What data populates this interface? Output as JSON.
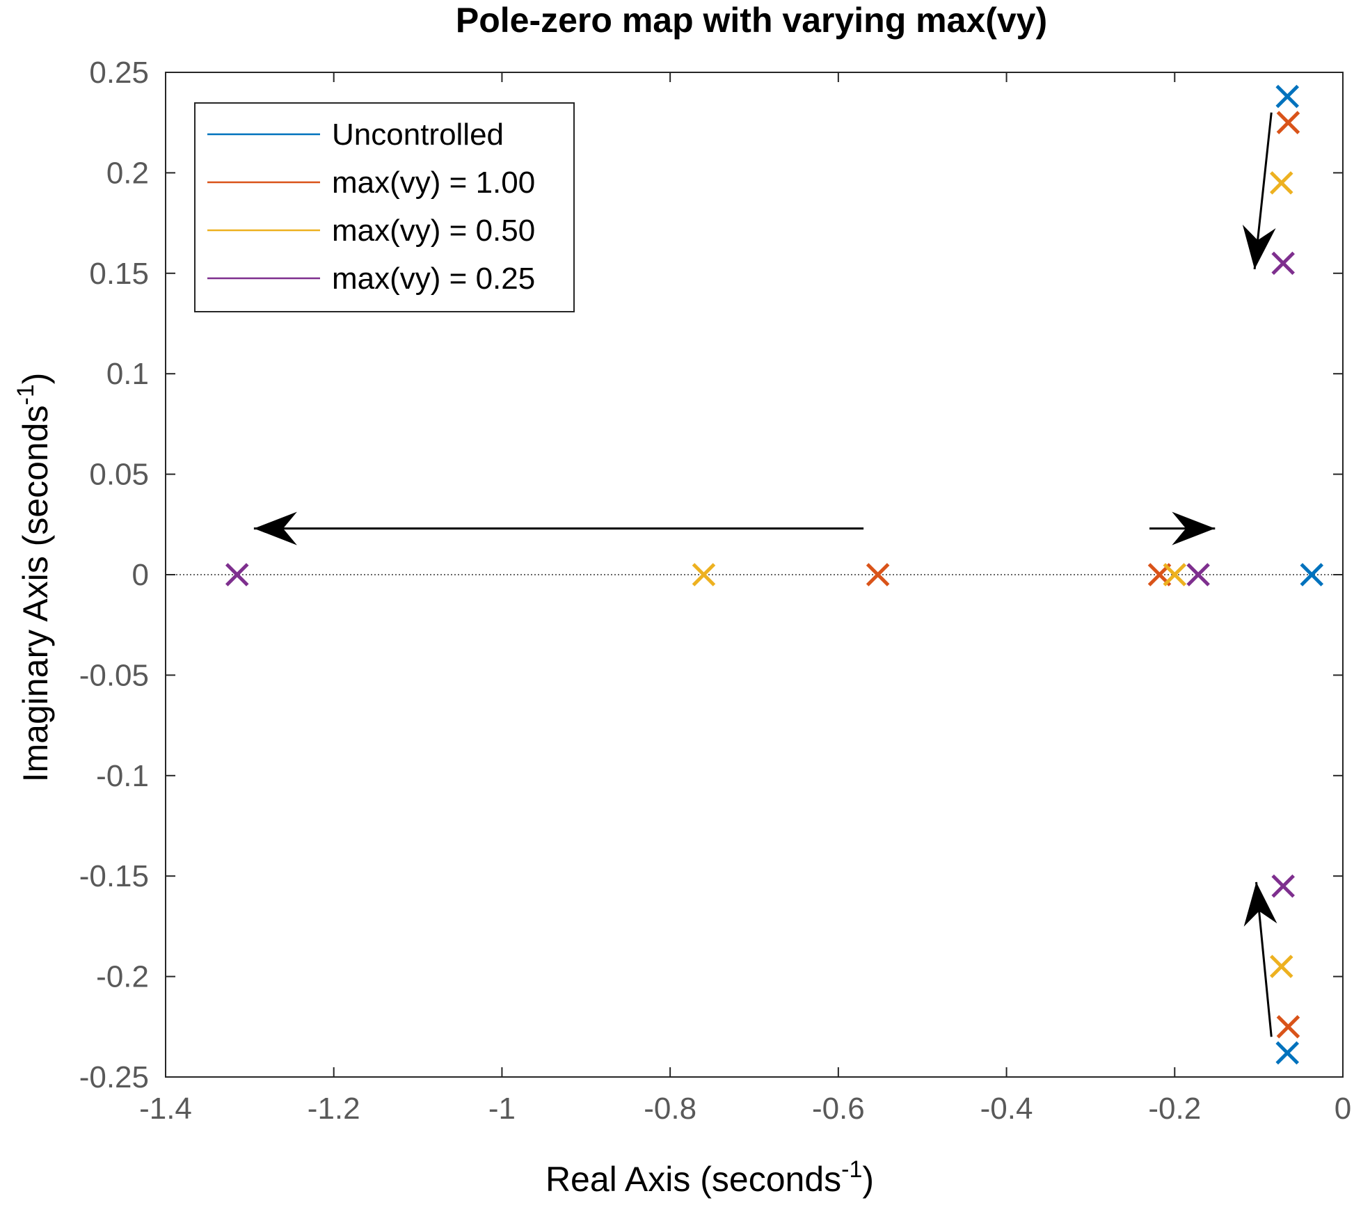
{
  "chart_data": {
    "type": "scatter",
    "title": "Pole-zero map with varying max(vy)",
    "xlabel": "Real Axis (seconds",
    "xlabel_sup": "-1",
    "xlabel_end": ")",
    "ylabel": "Imaginary Axis (seconds",
    "ylabel_sup": "-1",
    "ylabel_end": ")",
    "xlim": [
      -1.4,
      0
    ],
    "ylim": [
      -0.25,
      0.25
    ],
    "x_ticks": [
      -1.4,
      -1.2,
      -1,
      -0.8,
      -0.6,
      -0.4,
      -0.2,
      0
    ],
    "x_tick_labels": [
      "-1.4",
      "-1.2",
      "-1",
      "-0.8",
      "-0.6",
      "-0.4",
      "-0.2",
      "0"
    ],
    "y_ticks": [
      0.25,
      0.2,
      0.15,
      0.1,
      0.05,
      0,
      -0.05,
      -0.1,
      -0.15,
      -0.2,
      -0.25
    ],
    "y_tick_labels": [
      "0.25",
      "0.2",
      "0.15",
      "0.1",
      "0.05",
      "0",
      "-0.05",
      "-0.1",
      "-0.15",
      "-0.2",
      "-0.25"
    ],
    "grid": false,
    "legend_position": "top-left",
    "marker": "x",
    "series": [
      {
        "name": "Uncontrolled",
        "color": "#0072BD",
        "points": [
          [
            -0.066,
            0.238
          ],
          [
            -0.066,
            -0.238
          ],
          [
            -0.037,
            0
          ]
        ]
      },
      {
        "name": "max(vy) = 1.00",
        "color": "#D95319",
        "points": [
          [
            -0.065,
            0.225
          ],
          [
            -0.065,
            -0.225
          ],
          [
            -0.553,
            0
          ],
          [
            -0.218,
            0
          ]
        ]
      },
      {
        "name": "max(vy) = 0.50",
        "color": "#EDB120",
        "points": [
          [
            -0.073,
            0.195
          ],
          [
            -0.073,
            -0.195
          ],
          [
            -0.76,
            0
          ],
          [
            -0.2,
            0
          ]
        ]
      },
      {
        "name": "max(vy) = 0.25",
        "color": "#7E2F8E",
        "points": [
          [
            -0.071,
            0.155
          ],
          [
            -0.071,
            -0.155
          ],
          [
            -1.315,
            0
          ],
          [
            -0.172,
            0
          ]
        ]
      }
    ],
    "arrows": [
      {
        "from": [
          -0.085,
          0.23
        ],
        "to": [
          -0.105,
          0.152
        ]
      },
      {
        "from": [
          -0.085,
          -0.23
        ],
        "to": [
          -0.103,
          -0.153
        ]
      },
      {
        "from": [
          -0.57,
          0.023
        ],
        "to": [
          -1.295,
          0.023
        ]
      },
      {
        "from": [
          -0.23,
          0.023
        ],
        "to": [
          -0.152,
          0.023
        ]
      }
    ]
  }
}
